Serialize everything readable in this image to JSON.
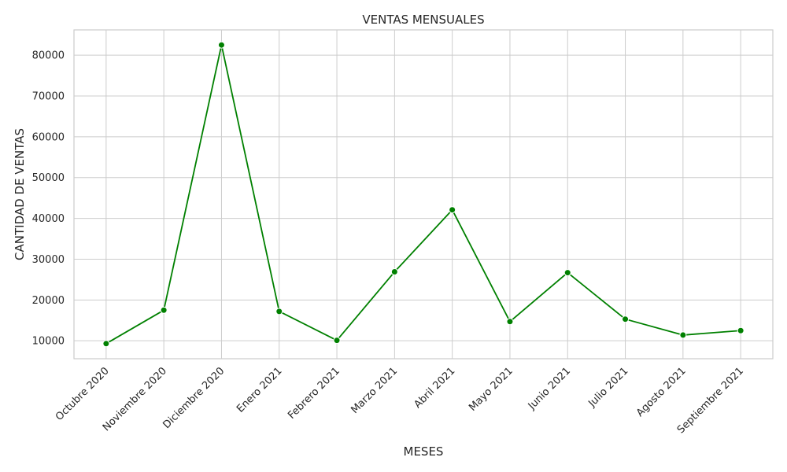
{
  "chart_data": {
    "type": "line",
    "title": "VENTAS MENSUALES",
    "xlabel": "MESES",
    "ylabel": "CANTIDAD DE VENTAS",
    "categories": [
      "Octubre 2020",
      "Noviembre 2020",
      "Diciembre 2020",
      "Enero 2021",
      "Febrero 2021",
      "Marzo 2021",
      "Abril 2021",
      "Mayo 2021",
      "Junio 2021",
      "Julio 2021",
      "Agosto 2021",
      "Septiembre 2021"
    ],
    "values": [
      9300,
      17500,
      82500,
      17200,
      10100,
      26900,
      42100,
      14700,
      26700,
      15300,
      11400,
      12500
    ],
    "ylim": [
      5600,
      86200
    ],
    "yticks": [
      10000,
      20000,
      30000,
      40000,
      50000,
      60000,
      70000,
      80000
    ],
    "grid": true,
    "colors": {
      "line": "#008000",
      "marker": "#008000",
      "grid": "#cccccc"
    }
  }
}
